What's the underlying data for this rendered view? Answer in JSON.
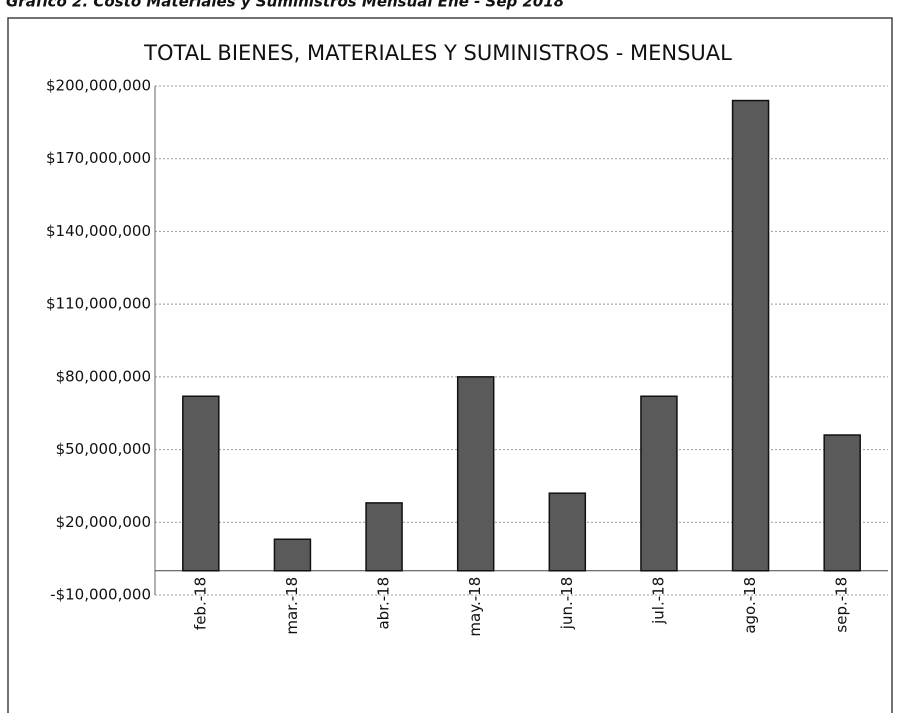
{
  "chart_data": {
    "type": "bar",
    "caption": "Gráfico 2. Costo Materiales y Suministros Mensual Ene - Sep 2018",
    "title": "TOTAL BIENES, MATERIALES Y SUMINISTROS - MENSUAL",
    "categories": [
      "feb.-18",
      "mar.-18",
      "abr.-18",
      "may.-18",
      "jun.-18",
      "jul.-18",
      "ago.-18",
      "sep.-18"
    ],
    "values": [
      72000000,
      13000000,
      28000000,
      80000000,
      32000000,
      72000000,
      194000000,
      56000000
    ],
    "color": "#5a5a5a",
    "ylim": [
      -10000000,
      200000000
    ],
    "yticks": [
      {
        "value": -10000000,
        "label": "-$10,000,000"
      },
      {
        "value": 20000000,
        "label": "$20,000,000"
      },
      {
        "value": 50000000,
        "label": "$50,000,000"
      },
      {
        "value": 80000000,
        "label": "$80,000,000"
      },
      {
        "value": 110000000,
        "label": "$110,000,000"
      },
      {
        "value": 140000000,
        "label": "$140,000,000"
      },
      {
        "value": 170000000,
        "label": "$170,000,000"
      },
      {
        "value": 200000000,
        "label": "$200,000,000"
      }
    ],
    "grid": true
  }
}
